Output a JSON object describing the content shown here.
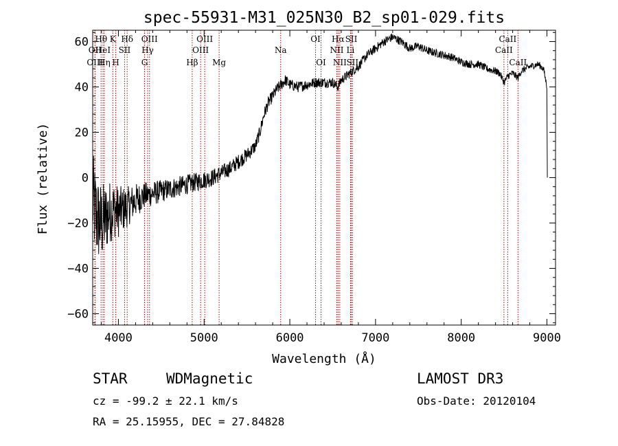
{
  "chart_data": {
    "type": "line",
    "title": "spec-55931-M31_025N30_B2_sp01-029.fits",
    "xlabel": "Wavelength (Å)",
    "ylabel": "Flux (relative)",
    "xlim": [
      3700,
      9100
    ],
    "ylim": [
      -65,
      65
    ],
    "xticks": [
      4000,
      5000,
      6000,
      7000,
      8000,
      9000
    ],
    "yticks": [
      -60,
      -40,
      -20,
      0,
      20,
      40,
      60
    ],
    "series": [
      {
        "name": "spectrum",
        "anchors": [
          [
            3700,
            -10
          ],
          [
            3750,
            -18
          ],
          [
            3800,
            -20
          ],
          [
            3850,
            -18
          ],
          [
            3900,
            -15
          ],
          [
            3950,
            -14
          ],
          [
            4000,
            -15
          ],
          [
            4050,
            -14
          ],
          [
            4100,
            -13
          ],
          [
            4200,
            -10
          ],
          [
            4300,
            -8
          ],
          [
            4400,
            -7
          ],
          [
            4500,
            -6
          ],
          [
            4600,
            -5
          ],
          [
            4700,
            -4
          ],
          [
            4800,
            -3
          ],
          [
            4900,
            -2
          ],
          [
            5000,
            -1
          ],
          [
            5100,
            0
          ],
          [
            5200,
            2
          ],
          [
            5300,
            4
          ],
          [
            5400,
            7
          ],
          [
            5500,
            10
          ],
          [
            5600,
            14
          ],
          [
            5650,
            20
          ],
          [
            5700,
            28
          ],
          [
            5750,
            33
          ],
          [
            5800,
            36
          ],
          [
            5850,
            39
          ],
          [
            5900,
            41
          ],
          [
            5950,
            43
          ],
          [
            6000,
            41
          ],
          [
            6100,
            40
          ],
          [
            6200,
            41
          ],
          [
            6300,
            42
          ],
          [
            6400,
            42
          ],
          [
            6500,
            42
          ],
          [
            6560,
            40
          ],
          [
            6600,
            43
          ],
          [
            6700,
            46
          ],
          [
            6800,
            49
          ],
          [
            6900,
            54
          ],
          [
            7000,
            57
          ],
          [
            7100,
            60
          ],
          [
            7200,
            62
          ],
          [
            7300,
            60
          ],
          [
            7400,
            57
          ],
          [
            7500,
            58
          ],
          [
            7600,
            56
          ],
          [
            7700,
            55
          ],
          [
            7800,
            54
          ],
          [
            7900,
            53
          ],
          [
            8000,
            51
          ],
          [
            8100,
            50
          ],
          [
            8200,
            50
          ],
          [
            8300,
            48
          ],
          [
            8400,
            47
          ],
          [
            8450,
            46
          ],
          [
            8500,
            42
          ],
          [
            8550,
            45
          ],
          [
            8600,
            46
          ],
          [
            8662,
            44
          ],
          [
            8700,
            47
          ],
          [
            8800,
            49
          ],
          [
            8900,
            50
          ],
          [
            8960,
            48
          ],
          [
            9000,
            40
          ],
          [
            9005,
            0
          ]
        ],
        "noise": [
          [
            3700,
            22
          ],
          [
            3900,
            14
          ],
          [
            4100,
            9
          ],
          [
            4300,
            6
          ],
          [
            4500,
            5
          ],
          [
            5000,
            4
          ],
          [
            5600,
            3
          ],
          [
            6000,
            2.5
          ],
          [
            7000,
            2
          ],
          [
            9000,
            1.5
          ]
        ]
      }
    ],
    "lines": [
      {
        "name": "OII",
        "wave": 3727,
        "row": 2
      },
      {
        "name": "OIII",
        "wave": 3727,
        "row": 3
      },
      {
        "name": "Hθ",
        "wave": 3798,
        "row": 1
      },
      {
        "name": "HeI",
        "wave": 3820,
        "row": 2
      },
      {
        "name": "Hη",
        "wave": 3835,
        "row": 3
      },
      {
        "name": "K",
        "wave": 3934,
        "row": 1
      },
      {
        "name": "H",
        "wave": 3969,
        "row": 3
      },
      {
        "name": "SII",
        "wave": 4072,
        "row": 2
      },
      {
        "name": "Hδ",
        "wave": 4102,
        "row": 1
      },
      {
        "name": "G",
        "wave": 4305,
        "row": 3
      },
      {
        "name": "OIII",
        "wave": 4363,
        "row": 1
      },
      {
        "name": "Hγ",
        "wave": 4341,
        "row": 2
      },
      {
        "name": "Hβ",
        "wave": 4861,
        "row": 3
      },
      {
        "name": "OIII",
        "wave": 5007,
        "row": 1
      },
      {
        "name": "OIII",
        "wave": 4959,
        "row": 2
      },
      {
        "name": "Mg",
        "wave": 5175,
        "row": 3
      },
      {
        "name": "Na",
        "wave": 5893,
        "row": 2
      },
      {
        "name": "OI",
        "wave": 6300,
        "row": 1
      },
      {
        "name": "OI",
        "wave": 6364,
        "row": 3
      },
      {
        "name": "Hα",
        "wave": 6563,
        "row": 1
      },
      {
        "name": "NII",
        "wave": 6548,
        "row": 2
      },
      {
        "name": "NII",
        "wave": 6583,
        "row": 3
      },
      {
        "name": "SII",
        "wave": 6717,
        "row": 1
      },
      {
        "name": "Li",
        "wave": 6708,
        "row": 2
      },
      {
        "name": "SII",
        "wave": 6731,
        "row": 3
      },
      {
        "name": "CaII",
        "wave": 8542,
        "row": 1
      },
      {
        "name": "CaII",
        "wave": 8498,
        "row": 2
      },
      {
        "name": "CaII",
        "wave": 8662,
        "row": 3
      }
    ]
  },
  "info": {
    "class": "STAR",
    "subclass": "WDMagnetic",
    "survey": "LAMOST DR3",
    "cz": "cz = -99.2 ± 22.1 km/s",
    "obs_date": "Obs-Date: 20120104",
    "radec": "RA =  25.15955, DEC =  27.84828"
  }
}
